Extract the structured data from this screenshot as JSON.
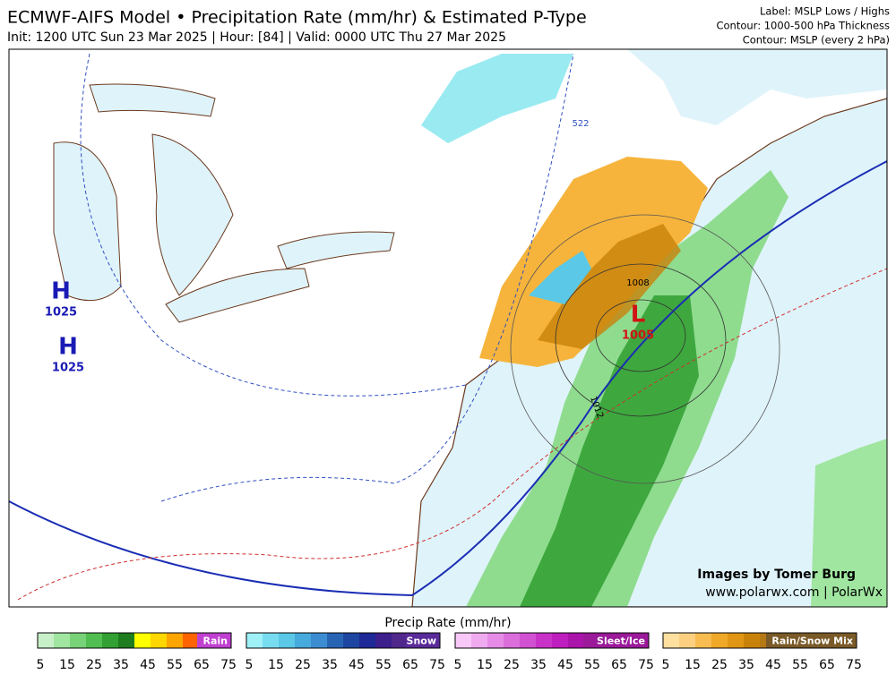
{
  "header": {
    "title": "ECMWF-AIFS Model • Precipitation Rate (mm/hr) & Estimated P-Type",
    "subtitle": "Init: 1200 UTC Sun 23 Mar 2025 | Hour: [84] | Valid: 0000 UTC Thu 27 Mar 2025",
    "notes": [
      "Label: MSLP Lows / Highs",
      "Contour: 1000-500 hPa Thickness",
      "Contour: MSLP (every 2 hPa)"
    ]
  },
  "map": {
    "pressure_labels": [
      {
        "symbol": "H",
        "value": "1025",
        "color": "#1a1ab4"
      },
      {
        "symbol": "H",
        "value": "1025",
        "color": "#1a1ab4"
      },
      {
        "symbol": "L",
        "value": "1005",
        "color": "#d01414"
      }
    ],
    "contour_labels": [
      "1008",
      "1012",
      "522"
    ],
    "credits": [
      "Images by Tomer Burg",
      "www.polarwx.com | PolarWx"
    ]
  },
  "legend": {
    "title": "Precip Rate (mm/hr)",
    "ticks": [
      "5",
      "15",
      "25",
      "35",
      "45",
      "55",
      "65",
      "75"
    ],
    "bars": [
      {
        "name": "Rain",
        "label_color": "#c040d0",
        "colors": [
          "#c8f0c8",
          "#a0e6a0",
          "#78d278",
          "#50be50",
          "#32a032",
          "#1e7d1e",
          "#ffff00",
          "#ffd700",
          "#ffa500",
          "#ff6400",
          "#e60000",
          "#b40000"
        ]
      },
      {
        "name": "Snow",
        "label_color": "#5a2a9a",
        "colors": [
          "#a0f0f8",
          "#78dcf0",
          "#5ac8e6",
          "#46aadc",
          "#3c8cd2",
          "#2864b4",
          "#1e46a0",
          "#1e2896",
          "#3c1e8c",
          "#50288c",
          "#5a3296",
          "#6432a0"
        ]
      },
      {
        "name": "Sleet/Ice",
        "label_color": "#9a1a9a",
        "colors": [
          "#f8c8f8",
          "#f0aaf0",
          "#e68ce6",
          "#dc6edc",
          "#d250d2",
          "#c832c8",
          "#be1ebe",
          "#aa14aa",
          "#961496",
          "#821482",
          "#6e1478",
          "#5a1464"
        ]
      },
      {
        "name": "Rain/Snow Mix",
        "label_color": "#7a5a28",
        "colors": [
          "#fde0a0",
          "#fcd080",
          "#f8bc50",
          "#f0a828",
          "#e09614",
          "#c8820a",
          "#b47814",
          "#a06e1e",
          "#8c6428",
          "#7a5a28",
          "#6e5028",
          "#644628"
        ]
      }
    ]
  }
}
